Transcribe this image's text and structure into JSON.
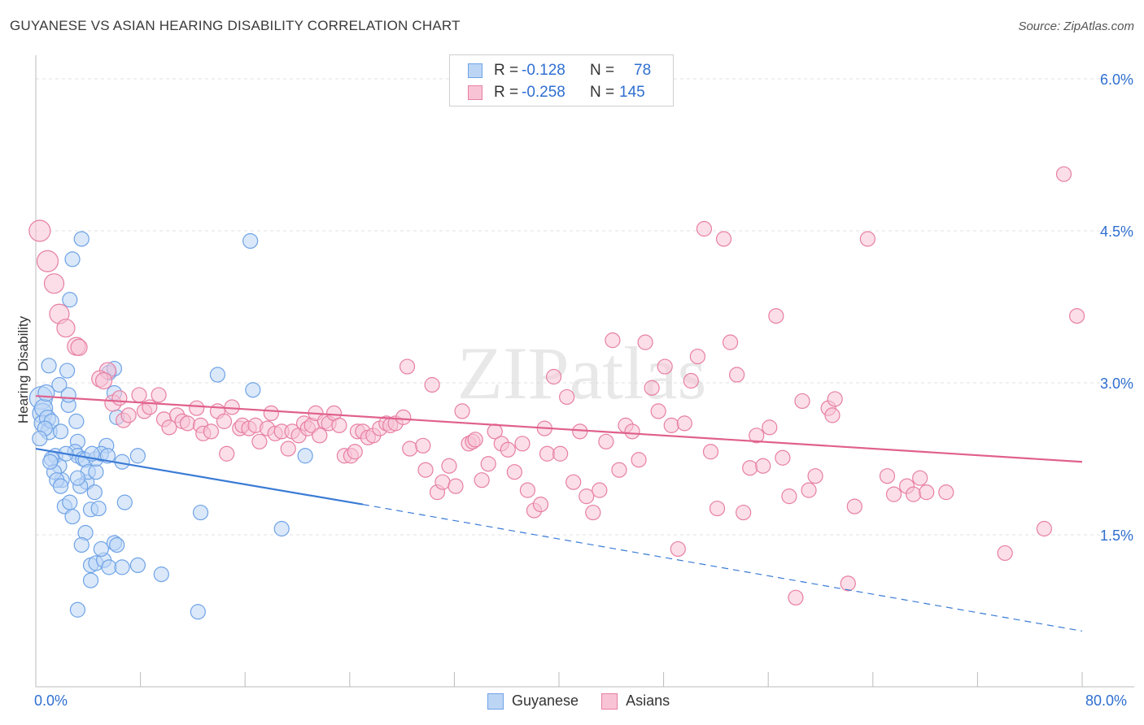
{
  "title": "GUYANESE VS ASIAN HEARING DISABILITY CORRELATION CHART",
  "source": "Source: ZipAtlas.com",
  "watermark": "ZIPatlas",
  "legend": {
    "rows": [
      {
        "r_label": "R =",
        "r_value": "-0.128",
        "n_label": "N =",
        "n_value": "78",
        "color": "#6fa3e6",
        "fill": "#bcd5f5"
      },
      {
        "r_label": "R =",
        "r_value": "-0.258",
        "n_label": "N =",
        "n_value": "145",
        "color": "#e77fa3",
        "fill": "#f8c3d5"
      }
    ]
  },
  "bottom_legend": [
    {
      "label": "Guyanese",
      "color": "#6fa3e6",
      "fill": "#bcd5f5"
    },
    {
      "label": "Asians",
      "color": "#e77fa3",
      "fill": "#f8c3d5"
    }
  ],
  "chart_data": {
    "type": "scatter",
    "title": "GUYANESE VS ASIAN HEARING DISABILITY CORRELATION CHART",
    "xlabel": "",
    "ylabel": "Hearing Disability",
    "x_range": [
      0,
      80
    ],
    "y_range": [
      0,
      6.3
    ],
    "x_tick_labels": [
      "0.0%",
      "80.0%"
    ],
    "y_ticks": [
      1.5,
      3.0,
      4.5,
      6.0
    ],
    "y_tick_labels": [
      "1.5%",
      "3.0%",
      "4.5%",
      "6.0%"
    ],
    "grid": "horizontal dashed",
    "series": [
      {
        "name": "Guyanese",
        "color": "#3a7bd5",
        "fill": "#bcd5f5",
        "stroke": "#6fa3e6",
        "trend": {
          "x0": 0,
          "y0": 2.35,
          "x1": 25,
          "y1": 1.8,
          "dash_to_x": 80,
          "dash_to_y": 0.55
        },
        "points": [
          [
            0.4,
            2.85,
            14
          ],
          [
            0.5,
            2.7,
            12
          ],
          [
            0.6,
            2.75,
            11
          ],
          [
            0.5,
            2.6,
            10
          ],
          [
            0.8,
            2.9,
            10
          ],
          [
            0.9,
            2.65,
            10
          ],
          [
            1.0,
            2.52,
            10
          ],
          [
            1.2,
            2.62,
            9
          ],
          [
            0.7,
            2.55,
            9
          ],
          [
            1.0,
            3.17,
            9
          ],
          [
            1.8,
            2.98,
            9
          ],
          [
            1.9,
            2.52,
            9
          ],
          [
            2.5,
            2.78,
            9
          ],
          [
            2.4,
            3.12,
            9
          ],
          [
            3.2,
            2.42,
            9
          ],
          [
            3.1,
            2.62,
            9
          ],
          [
            2.8,
            4.22,
            9
          ],
          [
            3.5,
            4.42,
            9
          ],
          [
            2.6,
            3.82,
            9
          ],
          [
            2.5,
            2.88,
            9
          ],
          [
            1.5,
            2.28,
            9
          ],
          [
            1.8,
            2.18,
            9
          ],
          [
            2.0,
            2.04,
            9
          ],
          [
            1.2,
            2.25,
            9
          ],
          [
            1.4,
            2.12,
            9
          ],
          [
            1.6,
            2.04,
            9
          ],
          [
            1.9,
            1.98,
            9
          ],
          [
            2.2,
            1.78,
            9
          ],
          [
            2.6,
            1.82,
            9
          ],
          [
            2.8,
            1.68,
            9
          ],
          [
            3.0,
            2.32,
            9
          ],
          [
            3.2,
            2.28,
            9
          ],
          [
            3.6,
            2.25,
            9
          ],
          [
            3.8,
            2.24,
            9
          ],
          [
            3.9,
            2.02,
            9
          ],
          [
            4.0,
            2.12,
            9
          ],
          [
            3.4,
            1.98,
            9
          ],
          [
            4.2,
            1.75,
            9
          ],
          [
            4.5,
            1.92,
            9
          ],
          [
            4.6,
            2.12,
            9
          ],
          [
            4.6,
            2.25,
            9
          ],
          [
            4.8,
            1.76,
            9
          ],
          [
            3.8,
            1.52,
            9
          ],
          [
            3.5,
            1.4,
            9
          ],
          [
            4.2,
            1.2,
            9
          ],
          [
            4.6,
            1.22,
            9
          ],
          [
            4.2,
            1.05,
            9
          ],
          [
            5.2,
            1.25,
            9
          ],
          [
            5.0,
            1.36,
            9
          ],
          [
            5.6,
            1.18,
            9
          ],
          [
            6.0,
            1.42,
            9
          ],
          [
            6.2,
            1.4,
            9
          ],
          [
            6.6,
            1.18,
            9
          ],
          [
            7.8,
            1.2,
            9
          ],
          [
            9.6,
            1.11,
            9
          ],
          [
            5.4,
            2.38,
            9
          ],
          [
            6.6,
            2.22,
            9
          ],
          [
            6.8,
            1.82,
            9
          ],
          [
            7.8,
            2.28,
            9
          ],
          [
            6.2,
            2.66,
            9
          ],
          [
            6.0,
            2.9,
            9
          ],
          [
            5.6,
            3.1,
            9
          ],
          [
            6.0,
            3.14,
            9
          ],
          [
            3.2,
            0.76,
            9
          ],
          [
            12.4,
            0.74,
            9
          ],
          [
            12.6,
            1.72,
            9
          ],
          [
            13.9,
            3.08,
            9
          ],
          [
            16.4,
            4.4,
            9
          ],
          [
            16.6,
            2.93,
            9
          ],
          [
            18.8,
            1.56,
            9
          ],
          [
            20.6,
            2.28,
            9
          ],
          [
            1.1,
            2.22,
            9
          ],
          [
            0.3,
            2.45,
            9
          ],
          [
            2.3,
            2.3,
            9
          ],
          [
            5.0,
            2.3,
            9
          ],
          [
            3.2,
            2.06,
            9
          ],
          [
            4.3,
            2.3,
            9
          ],
          [
            5.5,
            2.28,
            9
          ]
        ]
      },
      {
        "name": "Asians",
        "color": "#e0608c",
        "fill": "#f8c3d5",
        "stroke": "#e77fa3",
        "trend": {
          "x0": 0,
          "y0": 2.87,
          "x1": 80,
          "y1": 2.22
        },
        "points": [
          [
            0.3,
            4.5,
            13
          ],
          [
            0.9,
            4.2,
            13
          ],
          [
            1.4,
            3.98,
            12
          ],
          [
            1.8,
            3.68,
            12
          ],
          [
            2.3,
            3.54,
            11
          ],
          [
            3.1,
            3.36,
            11
          ],
          [
            3.3,
            3.35,
            10
          ],
          [
            5.5,
            3.12,
            10
          ],
          [
            4.9,
            3.04,
            10
          ],
          [
            5.2,
            3.02,
            10
          ],
          [
            5.9,
            2.8,
            10
          ],
          [
            6.4,
            2.85,
            9
          ],
          [
            6.7,
            2.63,
            9
          ],
          [
            7.1,
            2.68,
            9
          ],
          [
            7.9,
            2.88,
            9
          ],
          [
            8.3,
            2.72,
            9
          ],
          [
            8.7,
            2.76,
            9
          ],
          [
            9.4,
            2.88,
            9
          ],
          [
            9.8,
            2.64,
            9
          ],
          [
            10.2,
            2.56,
            9
          ],
          [
            10.8,
            2.68,
            9
          ],
          [
            11.2,
            2.62,
            9
          ],
          [
            11.6,
            2.6,
            9
          ],
          [
            12.3,
            2.75,
            9
          ],
          [
            12.6,
            2.58,
            9
          ],
          [
            12.8,
            2.5,
            9
          ],
          [
            13.4,
            2.52,
            9
          ],
          [
            13.9,
            2.72,
            9
          ],
          [
            14.4,
            2.62,
            9
          ],
          [
            14.6,
            2.3,
            9
          ],
          [
            15.0,
            2.76,
            9
          ],
          [
            15.6,
            2.55,
            9
          ],
          [
            15.8,
            2.58,
            9
          ],
          [
            16.3,
            2.55,
            9
          ],
          [
            16.8,
            2.58,
            9
          ],
          [
            17.1,
            2.42,
            9
          ],
          [
            17.7,
            2.55,
            9
          ],
          [
            18.0,
            2.7,
            9
          ],
          [
            18.3,
            2.5,
            9
          ],
          [
            18.8,
            2.52,
            9
          ],
          [
            19.3,
            2.35,
            9
          ],
          [
            19.6,
            2.52,
            9
          ],
          [
            20.1,
            2.48,
            9
          ],
          [
            20.5,
            2.6,
            9
          ],
          [
            20.8,
            2.55,
            9
          ],
          [
            21.1,
            2.58,
            9
          ],
          [
            21.4,
            2.7,
            9
          ],
          [
            21.7,
            2.48,
            9
          ],
          [
            22.1,
            2.62,
            9
          ],
          [
            22.4,
            2.6,
            9
          ],
          [
            22.8,
            2.7,
            9
          ],
          [
            23.2,
            2.58,
            9
          ],
          [
            23.6,
            2.28,
            9
          ],
          [
            24.1,
            2.28,
            9
          ],
          [
            24.4,
            2.32,
            9
          ],
          [
            24.6,
            2.52,
            9
          ],
          [
            25.0,
            2.52,
            9
          ],
          [
            25.4,
            2.46,
            9
          ],
          [
            25.8,
            2.48,
            9
          ],
          [
            26.3,
            2.55,
            9
          ],
          [
            26.8,
            2.6,
            9
          ],
          [
            27.1,
            2.58,
            9
          ],
          [
            27.5,
            2.6,
            9
          ],
          [
            28.1,
            2.66,
            9
          ],
          [
            28.6,
            2.35,
            9
          ],
          [
            28.4,
            3.16,
            9
          ],
          [
            29.6,
            2.38,
            9
          ],
          [
            29.8,
            2.14,
            9
          ],
          [
            30.3,
            2.98,
            9
          ],
          [
            30.7,
            1.92,
            9
          ],
          [
            31.1,
            2.02,
            9
          ],
          [
            31.6,
            2.18,
            9
          ],
          [
            32.1,
            1.98,
            9
          ],
          [
            32.6,
            2.72,
            9
          ],
          [
            33.1,
            2.4,
            9
          ],
          [
            33.4,
            2.42,
            9
          ],
          [
            33.6,
            2.44,
            9
          ],
          [
            34.1,
            2.04,
            9
          ],
          [
            34.6,
            2.2,
            9
          ],
          [
            35.1,
            2.52,
            9
          ],
          [
            35.6,
            2.4,
            9
          ],
          [
            36.1,
            2.34,
            9
          ],
          [
            36.6,
            2.12,
            9
          ],
          [
            37.2,
            2.4,
            9
          ],
          [
            37.6,
            1.94,
            9
          ],
          [
            38.1,
            1.74,
            9
          ],
          [
            38.6,
            1.8,
            9
          ],
          [
            38.9,
            2.55,
            9
          ],
          [
            39.1,
            2.3,
            9
          ],
          [
            39.6,
            3.06,
            9
          ],
          [
            40.1,
            2.3,
            9
          ],
          [
            40.6,
            2.86,
            9
          ],
          [
            41.1,
            2.02,
            9
          ],
          [
            41.6,
            2.52,
            9
          ],
          [
            42.1,
            1.88,
            9
          ],
          [
            42.6,
            1.72,
            9
          ],
          [
            43.1,
            1.94,
            9
          ],
          [
            43.6,
            2.42,
            9
          ],
          [
            44.1,
            3.42,
            9
          ],
          [
            44.6,
            2.14,
            9
          ],
          [
            45.1,
            2.58,
            9
          ],
          [
            45.6,
            2.52,
            9
          ],
          [
            46.1,
            2.24,
            9
          ],
          [
            46.6,
            3.4,
            9
          ],
          [
            47.1,
            2.95,
            9
          ],
          [
            47.6,
            2.72,
            9
          ],
          [
            48.1,
            3.16,
            9
          ],
          [
            48.6,
            2.58,
            9
          ],
          [
            49.1,
            1.36,
            9
          ],
          [
            49.6,
            2.6,
            9
          ],
          [
            50.1,
            3.02,
            9
          ],
          [
            50.6,
            3.26,
            9
          ],
          [
            51.1,
            4.52,
            9
          ],
          [
            51.6,
            2.32,
            9
          ],
          [
            52.1,
            1.76,
            9
          ],
          [
            52.6,
            4.42,
            9
          ],
          [
            53.1,
            3.4,
            9
          ],
          [
            53.6,
            3.08,
            9
          ],
          [
            54.1,
            1.72,
            9
          ],
          [
            54.6,
            2.16,
            9
          ],
          [
            55.1,
            2.48,
            9
          ],
          [
            55.6,
            2.18,
            9
          ],
          [
            56.1,
            2.56,
            9
          ],
          [
            56.6,
            3.66,
            9
          ],
          [
            57.1,
            2.26,
            9
          ],
          [
            57.6,
            1.88,
            9
          ],
          [
            58.1,
            0.88,
            9
          ],
          [
            58.6,
            2.82,
            9
          ],
          [
            59.1,
            1.94,
            9
          ],
          [
            59.6,
            2.08,
            9
          ],
          [
            60.6,
            2.75,
            9
          ],
          [
            60.9,
            2.68,
            9
          ],
          [
            61.1,
            2.84,
            9
          ],
          [
            62.1,
            1.02,
            9
          ],
          [
            62.6,
            1.78,
            9
          ],
          [
            63.6,
            4.42,
            9
          ],
          [
            65.1,
            2.08,
            9
          ],
          [
            65.6,
            1.9,
            9
          ],
          [
            66.6,
            1.98,
            9
          ],
          [
            67.1,
            1.9,
            9
          ],
          [
            67.6,
            2.06,
            9
          ],
          [
            68.1,
            1.92,
            9
          ],
          [
            69.6,
            1.92,
            9
          ],
          [
            74.1,
            1.32,
            9
          ],
          [
            77.1,
            1.56,
            9
          ],
          [
            78.6,
            5.06,
            9
          ],
          [
            79.6,
            3.66,
            9
          ]
        ]
      }
    ]
  }
}
